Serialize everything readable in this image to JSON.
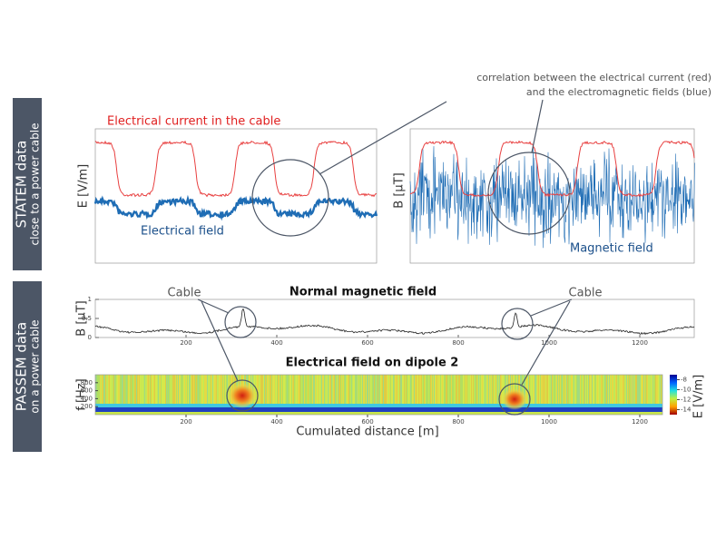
{
  "annotation": {
    "line1": "correlation between the electrical current (red)",
    "line2": "and the electromagnetic fields (blue)"
  },
  "sections": [
    {
      "line1": "STATEM data",
      "line2": "close to a power cable"
    },
    {
      "line1": "PASSEM data",
      "line2": "on a power cable"
    }
  ],
  "statem": {
    "current_label": "Electrical current in the cable",
    "left": {
      "y_label": "E [V/m]",
      "caption": "Electrical field"
    },
    "right": {
      "y_label": "B [μT]",
      "caption": "Magnetic field"
    }
  },
  "passem": {
    "magnetic": {
      "title": "Normal magnetic field",
      "y_label": "B [μT]",
      "ylim": [
        0,
        1
      ],
      "yticks": [
        0,
        0.5,
        1
      ],
      "xlim": [
        0,
        1320
      ],
      "xticks": [
        200,
        400,
        600,
        800,
        1000,
        1200
      ]
    },
    "cable_labels": [
      "Cable",
      "Cable"
    ],
    "electrical": {
      "title": "Electrical field on dipole 2",
      "y_label": "f [Hz]",
      "ylim": [
        0,
        1000
      ],
      "yticks": [
        200,
        400,
        600,
        800
      ],
      "xlim": [
        0,
        1250
      ],
      "xticks": [
        200,
        400,
        600,
        800,
        1000,
        1200
      ],
      "colorbar": {
        "label": "E [V/m]",
        "lim": [
          -15,
          -7
        ],
        "ticks": [
          -8,
          -10,
          -12,
          -14
        ]
      }
    },
    "x_label": "Cumulated distance [m]"
  }
}
